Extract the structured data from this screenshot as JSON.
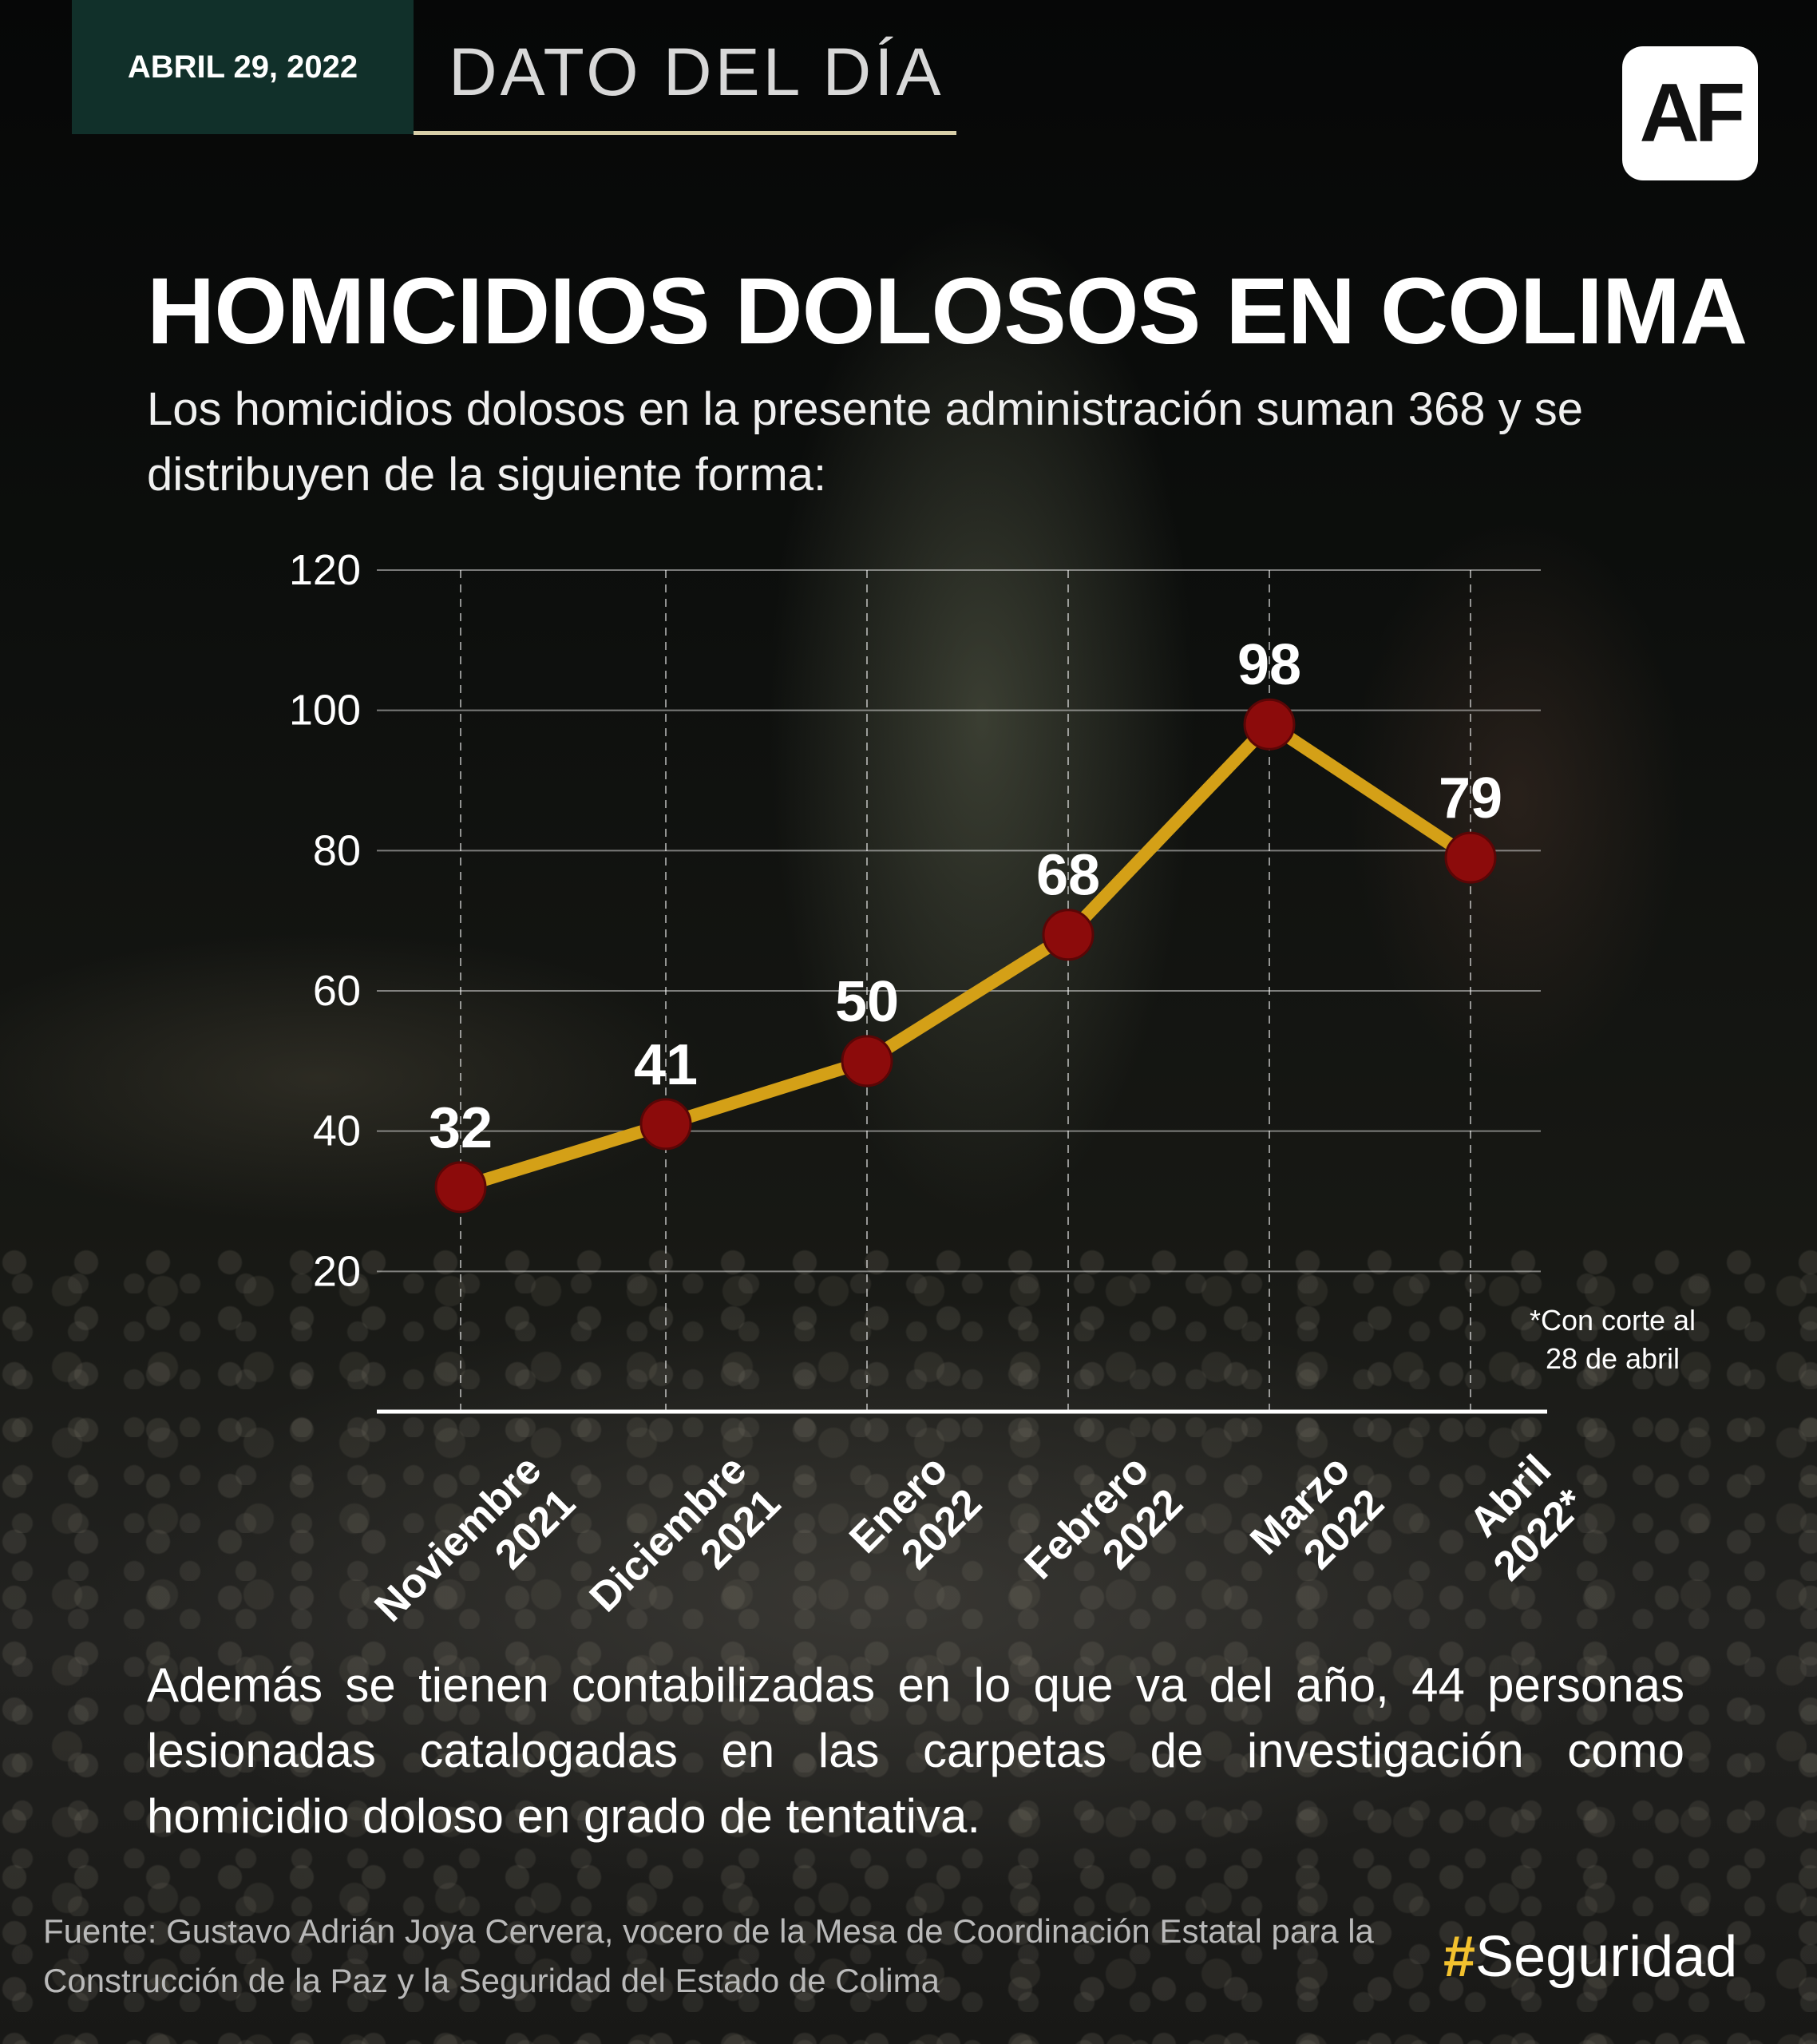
{
  "header": {
    "date": "ABRIL 29, 2022",
    "kicker": "DATO DEL DÍA",
    "logo": "AF"
  },
  "title": "HOMICIDIOS DOLOSOS EN COLIMA",
  "subtitle": "Los homicidios dolosos en la presente administración suman 368 y se distribuyen de la siguiente forma:",
  "chart_data": {
    "type": "line",
    "categories": [
      "Noviembre 2021",
      "Diciembre 2021",
      "Enero 2022",
      "Febrero 2022",
      "Marzo 2022",
      "Abril 2022*"
    ],
    "category_lines": [
      [
        "Noviembre",
        "2021"
      ],
      [
        "Diciembre",
        "2021"
      ],
      [
        "Enero",
        "2022"
      ],
      [
        "Febrero",
        "2022"
      ],
      [
        "Marzo",
        "2022"
      ],
      [
        "Abril",
        "2022*"
      ]
    ],
    "values": [
      32,
      41,
      50,
      68,
      98,
      79
    ],
    "y_ticks": [
      20,
      40,
      60,
      80,
      100,
      120
    ],
    "ylim": [
      0,
      120
    ],
    "grid": true,
    "line_color": "#d4a017",
    "marker_color": "#8c0b0b",
    "note": [
      "*Con corte al",
      "28 de abril"
    ]
  },
  "bottom_text": "Además se tienen contabilizadas en lo que va del año, 44 personas lesionadas catalogadas en las carpetas de investigación como homicidio doloso en grado de tentativa.",
  "source": "Fuente: Gustavo Adrián Joya Cervera, vocero de la Mesa de Coordinación Estatal para la Construcción de la Paz y la Seguridad del Estado de Colima",
  "hashtag": {
    "symbol": "#",
    "text": "Seguridad",
    "accent_color": "#f2c12e"
  }
}
